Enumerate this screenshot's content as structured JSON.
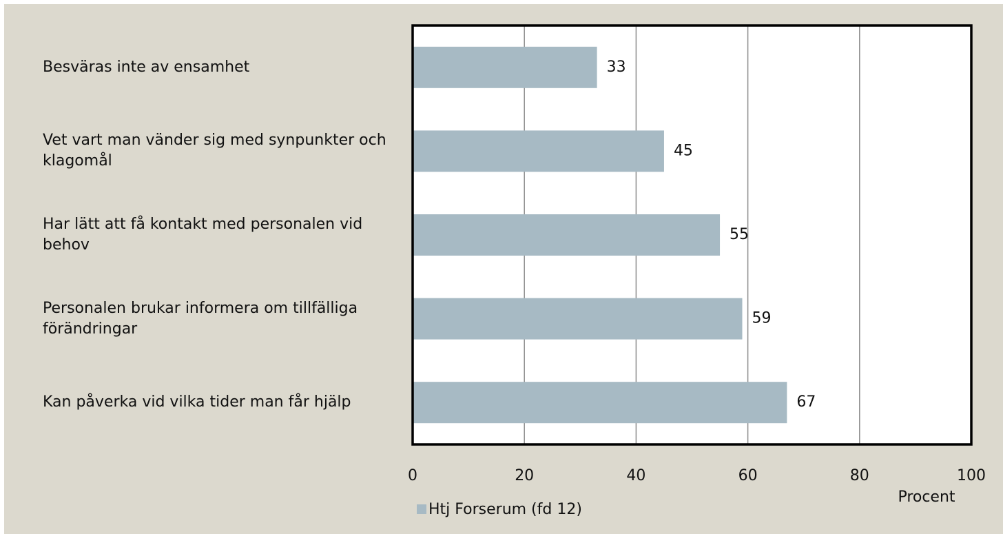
{
  "chart_data": {
    "type": "bar",
    "orientation": "horizontal",
    "categories": [
      "Besväras inte av ensamhet",
      "Vet vart man vänder sig med synpunkter och klagomål",
      "Har lätt att få kontakt med personalen vid behov",
      "Personalen brukar informera om tillfälliga förändringar",
      "Kan påverka vid vilka tider man får hjälp"
    ],
    "series": [
      {
        "name": "Htj Forserum (fd 12)",
        "color": "#a7bac4",
        "values": [
          33,
          45,
          55,
          59,
          67
        ]
      }
    ],
    "xlabel": "Procent",
    "xlim": [
      0,
      100
    ],
    "xticks": [
      0,
      20,
      40,
      60,
      80,
      100
    ],
    "grid": true,
    "legend": "bottom-left"
  }
}
